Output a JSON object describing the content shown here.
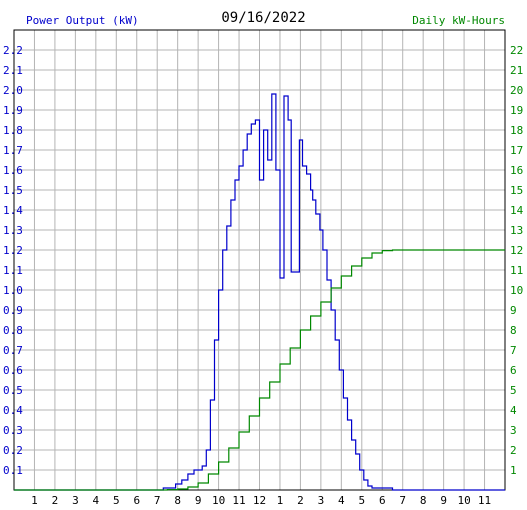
{
  "chart_data": {
    "type": "line",
    "title": "09/16/2022",
    "ylabel_left": "Power Output (kW)",
    "ylabel_right": "Daily kW-Hours",
    "xlim": [
      0,
      24
    ],
    "ylim_left": [
      0,
      2.3
    ],
    "ylim_right": [
      0,
      23
    ],
    "x_tick_labels": [
      "1",
      "2",
      "3",
      "4",
      "5",
      "6",
      "7",
      "8",
      "9",
      "10",
      "11",
      "12",
      "1",
      "2",
      "3",
      "4",
      "5",
      "6",
      "7",
      "8",
      "9",
      "10",
      "11"
    ],
    "y_left_ticks": [
      "0.1",
      "0.2",
      "0.3",
      "0.4",
      "0.5",
      "0.6",
      "0.7",
      "0.8",
      "0.9",
      "1.0",
      "1.1",
      "1.2",
      "1.3",
      "1.4",
      "1.5",
      "1.6",
      "1.7",
      "1.8",
      "1.9",
      "2.0",
      "2.1",
      "2.2"
    ],
    "y_right_ticks": [
      "1",
      "2",
      "3",
      "4",
      "5",
      "6",
      "7",
      "8",
      "9",
      "10",
      "11",
      "12",
      "13",
      "14",
      "15",
      "16",
      "17",
      "18",
      "19",
      "20",
      "21",
      "22"
    ],
    "grid": true,
    "series": [
      {
        "name": "Power Output (kW)",
        "axis": "left",
        "color": "#0000cc",
        "x": [
          0,
          6.8,
          7.3,
          7.9,
          8.2,
          8.5,
          8.8,
          9.0,
          9.2,
          9.4,
          9.6,
          9.8,
          10.0,
          10.2,
          10.4,
          10.6,
          10.8,
          11.0,
          11.2,
          11.4,
          11.6,
          11.8,
          12.0,
          12.2,
          12.4,
          12.6,
          12.8,
          13.0,
          13.2,
          13.4,
          13.55,
          13.75,
          13.95,
          14.1,
          14.3,
          14.5,
          14.6,
          14.75,
          14.95,
          15.1,
          15.3,
          15.5,
          15.7,
          15.9,
          16.1,
          16.3,
          16.5,
          16.7,
          16.9,
          17.1,
          17.3,
          17.5,
          17.7,
          17.9,
          18.1,
          18.3,
          18.5,
          18.7,
          18.9,
          19.1,
          19.5,
          20.0,
          20.5,
          21.0,
          24
        ],
        "values": [
          0,
          0,
          0.01,
          0.03,
          0.05,
          0.08,
          0.1,
          0.1,
          0.12,
          0.2,
          0.45,
          0.75,
          1.0,
          1.2,
          1.32,
          1.45,
          1.55,
          1.62,
          1.7,
          1.78,
          1.83,
          1.85,
          1.55,
          1.8,
          1.65,
          1.98,
          1.6,
          1.06,
          1.97,
          1.85,
          1.09,
          1.09,
          1.75,
          1.62,
          1.58,
          1.5,
          1.45,
          1.38,
          1.3,
          1.2,
          1.05,
          0.9,
          0.75,
          0.6,
          0.46,
          0.35,
          0.25,
          0.18,
          0.1,
          0.05,
          0.02,
          0.01,
          0.01,
          0.01,
          0.01,
          0.01,
          0,
          0,
          0,
          0,
          0,
          0,
          0,
          0,
          0
        ]
      },
      {
        "name": "Daily kW-Hours",
        "axis": "right",
        "color": "#008800",
        "x": [
          0,
          7.0,
          7.5,
          8.0,
          8.5,
          9.0,
          9.5,
          10.0,
          10.5,
          11.0,
          11.5,
          12.0,
          12.5,
          13.0,
          13.5,
          14.0,
          14.5,
          15.0,
          15.5,
          16.0,
          16.5,
          17.0,
          17.5,
          18.0,
          18.5,
          19.0,
          24
        ],
        "values": [
          0,
          0,
          0.02,
          0.05,
          0.15,
          0.35,
          0.8,
          1.4,
          2.1,
          2.9,
          3.7,
          4.6,
          5.4,
          6.3,
          7.1,
          8.0,
          8.7,
          9.4,
          10.1,
          10.7,
          11.2,
          11.6,
          11.85,
          11.97,
          12.0,
          12.0,
          12.0
        ]
      }
    ]
  }
}
